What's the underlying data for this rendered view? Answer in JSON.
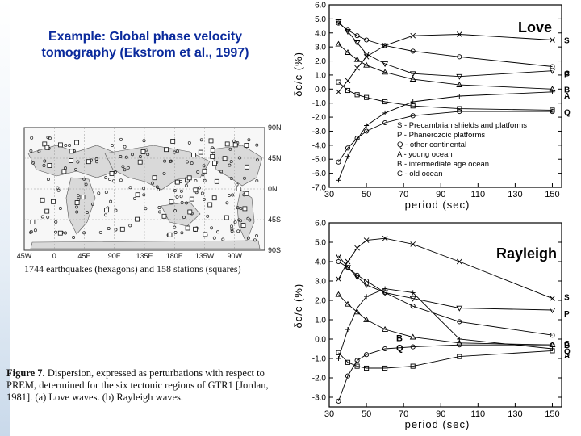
{
  "slide": {
    "title_line1": "Example: Global phase velocity",
    "title_line2": "tomography  (Ekstrom et al., 1997)"
  },
  "map": {
    "lat_labels": [
      "90N",
      "45N",
      "0N",
      "45S",
      "90S"
    ],
    "lon_labels": [
      "45W",
      "0",
      "45E",
      "90E",
      "135E",
      "180E",
      "135W",
      "90W"
    ],
    "caption": "1744 earthquakes (hexagons) and 158 stations (squares)"
  },
  "figure_caption": {
    "label": "Figure 7.",
    "text": "Dispersion, expressed as perturbations with respect to PREM, determined for the six tectonic regions of GTR1 [Jordan, 1981]. (a) Love waves. (b) Rayleigh waves."
  },
  "chart_data": [
    {
      "type": "line",
      "title": "Love",
      "xlabel": "period  (sec)",
      "ylabel": "δc/c  (%)",
      "xlim": [
        30,
        155
      ],
      "ylim": [
        -7.0,
        6.0
      ],
      "xticks": [
        "30",
        "50",
        "70",
        "90",
        "110",
        "130",
        "150"
      ],
      "yticks": [
        "6.0",
        "5.0",
        "4.0",
        "3.0",
        "2.0",
        "1.0",
        "0.0",
        "-1.0",
        "-2.0",
        "-3.0",
        "-4.0",
        "-5.0",
        "-6.0",
        "-7.0"
      ],
      "series": [
        {
          "name": "S",
          "marker": "x",
          "x": [
            35,
            40,
            45,
            50,
            60,
            75,
            100,
            150
          ],
          "y": [
            -0.2,
            0.6,
            1.5,
            2.3,
            3.1,
            3.8,
            3.9,
            3.5
          ]
        },
        {
          "name": "C",
          "marker": "circle",
          "x": [
            35,
            40,
            45,
            50,
            60,
            75,
            100,
            150
          ],
          "y": [
            4.7,
            4.2,
            3.8,
            3.5,
            3.1,
            2.7,
            2.3,
            1.6
          ]
        },
        {
          "name": "P",
          "marker": "triangle-down",
          "x": [
            35,
            40,
            45,
            50,
            60,
            75,
            100,
            150
          ],
          "y": [
            4.8,
            4.1,
            3.3,
            2.5,
            1.8,
            1.1,
            0.9,
            1.3
          ]
        },
        {
          "name": "B",
          "marker": "triangle-up",
          "x": [
            35,
            40,
            45,
            50,
            60,
            75,
            100,
            150
          ],
          "y": [
            3.2,
            2.6,
            2.1,
            1.7,
            1.2,
            0.7,
            0.3,
            0.0
          ]
        },
        {
          "name": "Q",
          "marker": "square",
          "x": [
            35,
            40,
            45,
            50,
            60,
            75,
            100,
            150
          ],
          "y": [
            0.5,
            -0.1,
            -0.4,
            -0.6,
            -0.9,
            -1.2,
            -1.4,
            -1.5
          ]
        },
        {
          "name": "A",
          "marker": "plus",
          "x": [
            35,
            40,
            45,
            50,
            60,
            75,
            100,
            150
          ],
          "y": [
            -6.5,
            -4.8,
            -3.6,
            -2.6,
            -1.7,
            -0.9,
            -0.5,
            -0.2
          ]
        },
        {
          "name": "",
          "marker": "circle-open",
          "x": [
            35,
            40,
            45,
            50,
            60,
            75,
            100,
            150
          ],
          "y": [
            -5.2,
            -4.2,
            -3.5,
            -3.0,
            -2.4,
            -1.9,
            -1.6,
            -1.6
          ]
        }
      ],
      "legend": [
        "S - Precambrian shields and platforms",
        "P - Phanerozoic platforms",
        "Q - other continental",
        "A - young ocean",
        "B - intermediate age ocean",
        "C - old ocean"
      ],
      "legend_position": "lower-right"
    },
    {
      "type": "line",
      "title": "Rayleigh",
      "xlabel": "period  (sec)",
      "ylabel": "δc/c  (%)",
      "xlim": [
        30,
        155
      ],
      "ylim": [
        -3.5,
        6.0
      ],
      "xticks": [
        "30",
        "50",
        "70",
        "90",
        "110",
        "130",
        "150"
      ],
      "yticks": [
        "6.0",
        "5.0",
        "4.0",
        "3.0",
        "2.0",
        "1.0",
        "0.0",
        "-1.0",
        "-2.0",
        "-3.0"
      ],
      "annotations": [
        "B",
        "Q"
      ],
      "series": [
        {
          "name": "S",
          "marker": "x",
          "x": [
            35,
            40,
            45,
            50,
            60,
            75,
            100,
            150
          ],
          "y": [
            3.1,
            4.0,
            4.7,
            5.1,
            5.2,
            4.9,
            4.0,
            2.1
          ]
        },
        {
          "name": "P",
          "marker": "triangle-down",
          "x": [
            35,
            40,
            45,
            50,
            60,
            75,
            100,
            150
          ],
          "y": [
            4.3,
            3.7,
            3.2,
            2.8,
            2.4,
            2.1,
            1.6,
            1.5
          ]
        },
        {
          "name": "C",
          "marker": "circle",
          "x": [
            35,
            40,
            45,
            50,
            60,
            75,
            100,
            150
          ],
          "y": [
            4.0,
            3.7,
            3.3,
            3.0,
            2.4,
            1.7,
            0.9,
            0.2
          ]
        },
        {
          "name": "B",
          "marker": "triangle-up",
          "x": [
            35,
            40,
            45,
            50,
            60,
            75,
            100,
            150
          ],
          "y": [
            2.3,
            1.8,
            1.4,
            1.0,
            0.5,
            0.1,
            -0.2,
            -0.3
          ]
        },
        {
          "name": "Q",
          "marker": "square",
          "x": [
            35,
            40,
            45,
            50,
            60,
            75,
            100,
            150
          ],
          "y": [
            -0.7,
            -1.2,
            -1.4,
            -1.5,
            -1.5,
            -1.4,
            -0.9,
            -0.6
          ]
        },
        {
          "name": "A",
          "marker": "plus",
          "x": [
            35,
            40,
            45,
            50,
            60,
            75,
            100,
            150
          ],
          "y": [
            -1.0,
            0.5,
            1.6,
            2.2,
            2.6,
            2.4,
            0.0,
            -0.5
          ]
        },
        {
          "name": "",
          "marker": "circle-open",
          "x": [
            35,
            40,
            45,
            50,
            60,
            75,
            100,
            150
          ],
          "y": [
            -3.2,
            -1.9,
            -1.1,
            -0.8,
            -0.5,
            -0.4,
            -0.3,
            -0.3
          ]
        }
      ]
    }
  ]
}
